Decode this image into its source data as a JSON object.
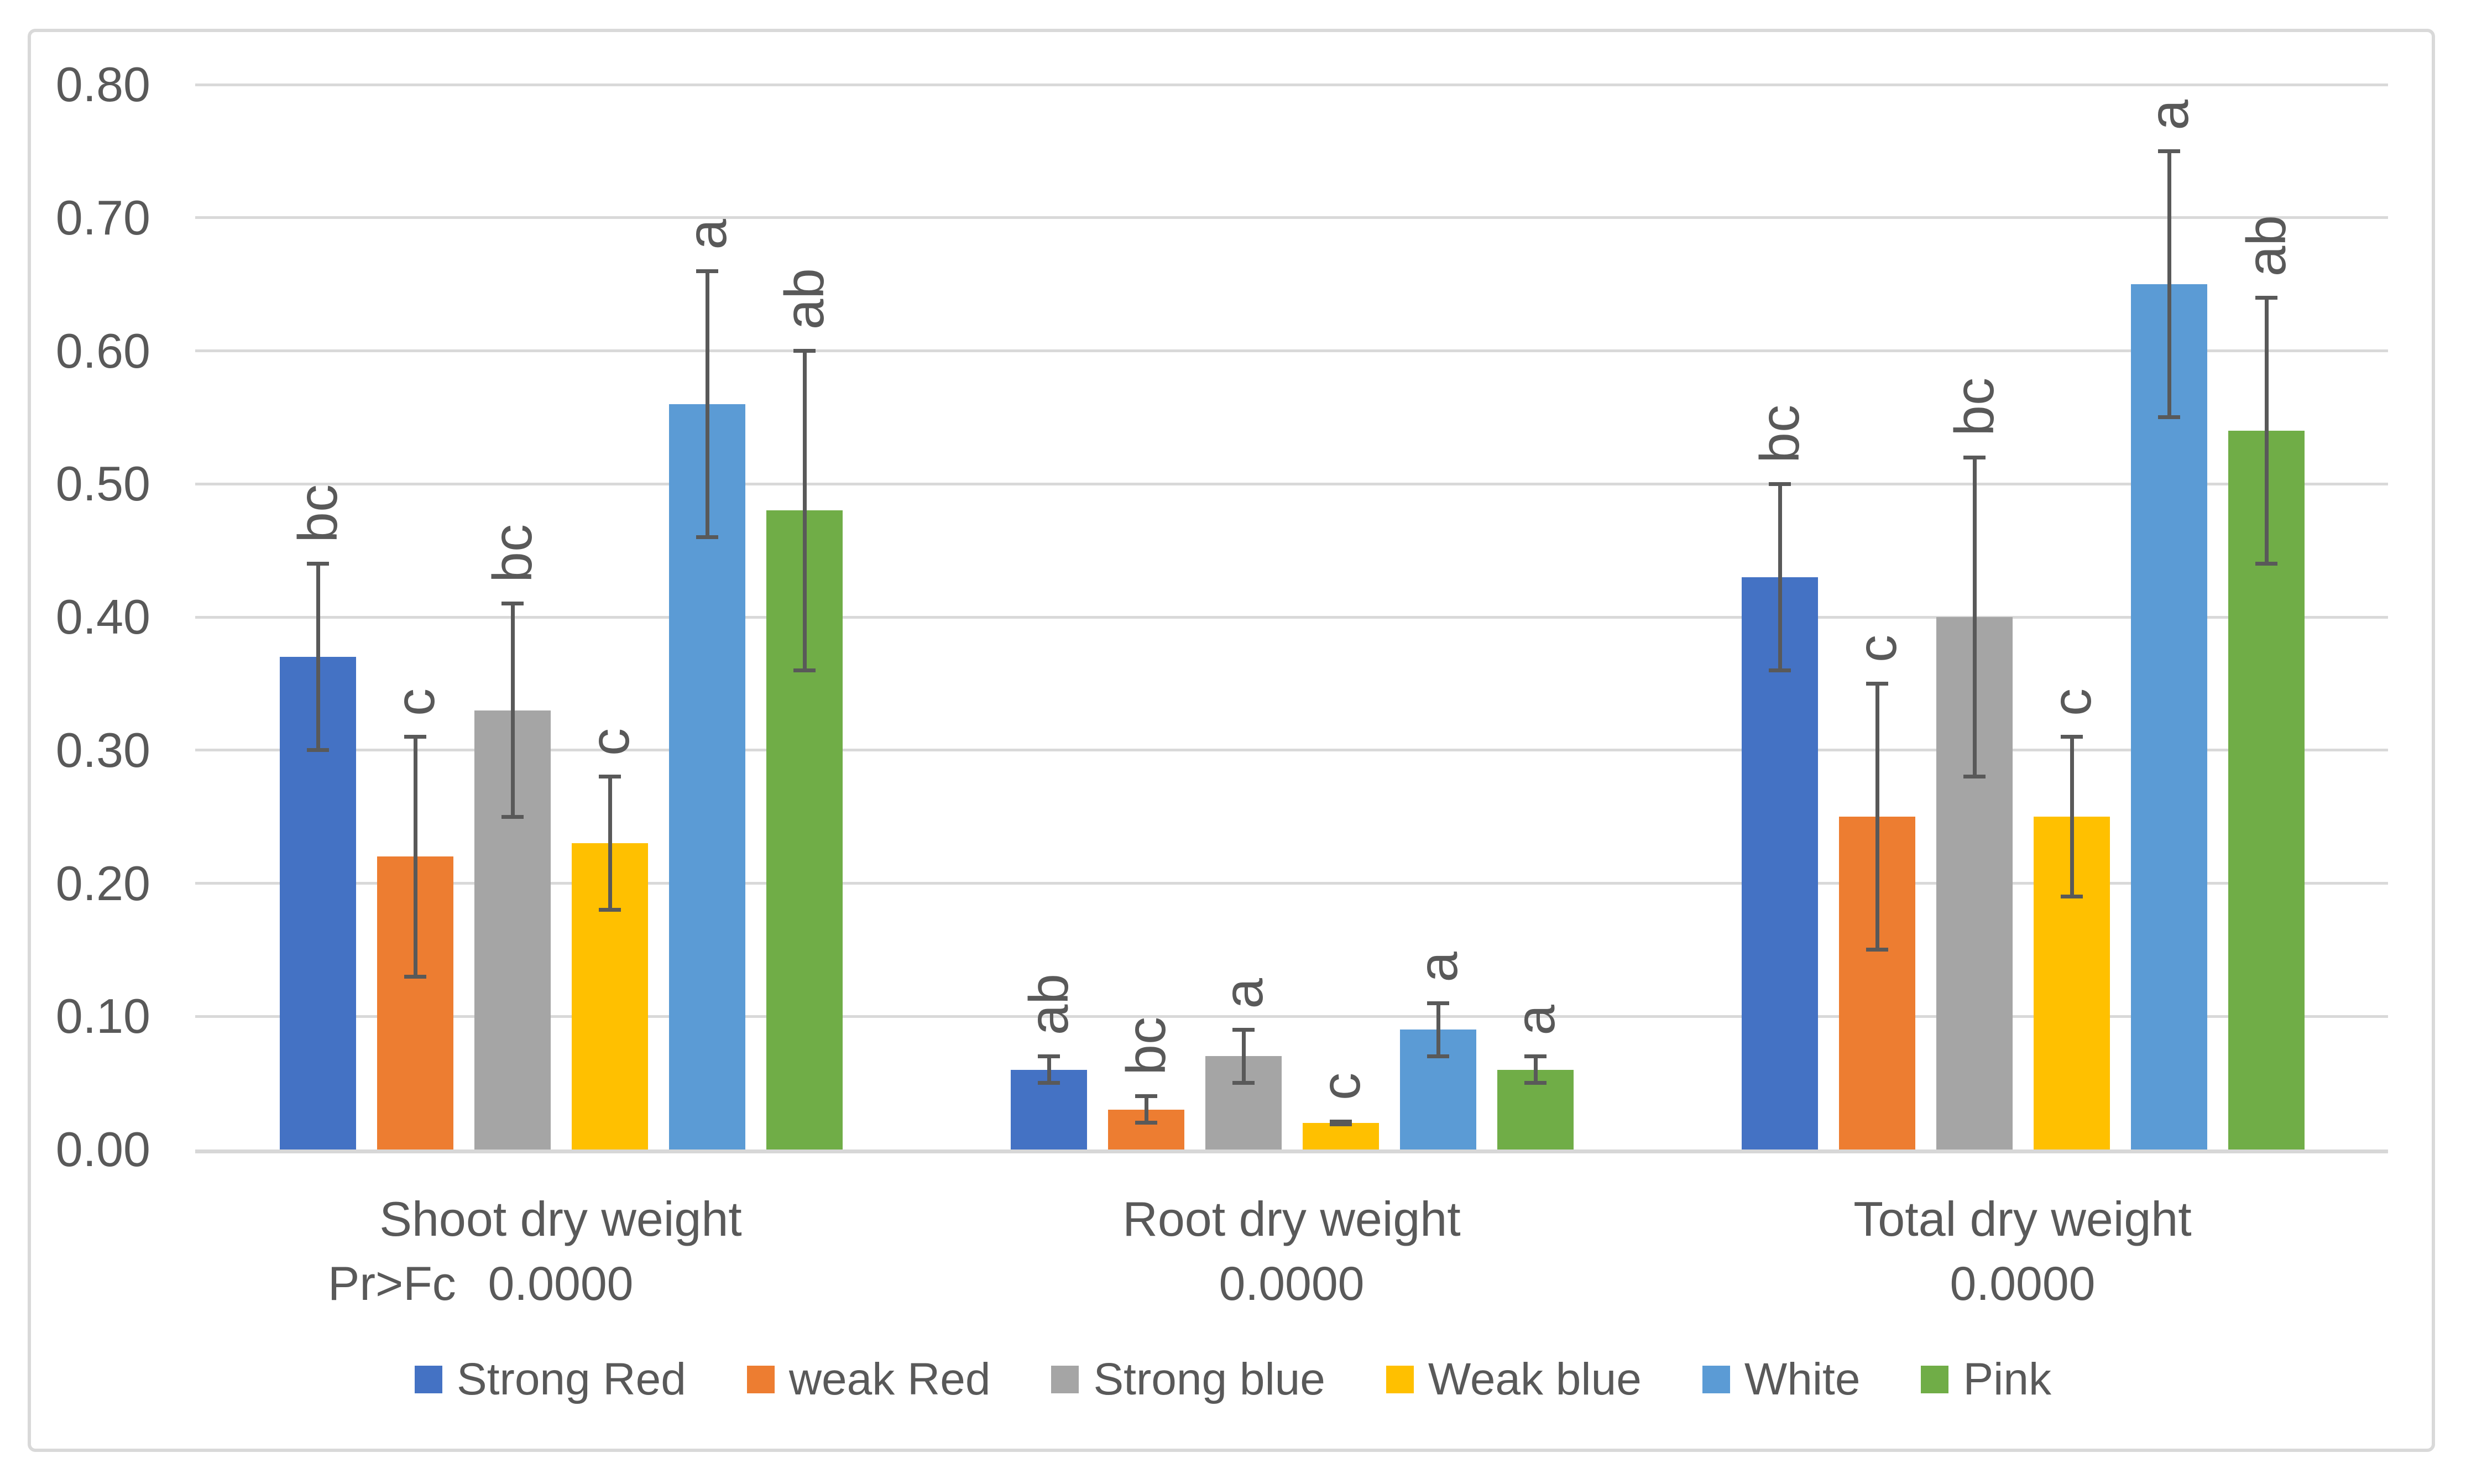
{
  "chart_data": {
    "type": "bar",
    "title": "",
    "categories": [
      "Shoot dry weight",
      "Root dry weight",
      "Total dry weight"
    ],
    "pr_row": {
      "label": "Pr>Fc",
      "values": [
        "0.0000",
        "0.0000",
        "0.0000"
      ]
    },
    "series": [
      {
        "name": "Strong Red",
        "color": "#4472C4",
        "values": [
          0.37,
          0.06,
          0.43
        ],
        "error_low": [
          0.3,
          0.05,
          0.36
        ],
        "error_high": [
          0.44,
          0.07,
          0.5
        ],
        "letters": [
          "bc",
          "ab",
          "bc"
        ]
      },
      {
        "name": "weak Red",
        "color": "#ED7D31",
        "values": [
          0.22,
          0.03,
          0.25
        ],
        "error_low": [
          0.13,
          0.02,
          0.15
        ],
        "error_high": [
          0.31,
          0.04,
          0.35
        ],
        "letters": [
          "c",
          "bc",
          "c"
        ]
      },
      {
        "name": "Strong blue",
        "color": "#A5A5A5",
        "values": [
          0.33,
          0.07,
          0.4
        ],
        "error_low": [
          0.25,
          0.05,
          0.28
        ],
        "error_high": [
          0.41,
          0.09,
          0.52
        ],
        "letters": [
          "bc",
          "a",
          "bc"
        ]
      },
      {
        "name": "Weak blue",
        "color": "#FFC000",
        "values": [
          0.23,
          0.02,
          0.25
        ],
        "error_low": [
          0.18,
          0.019,
          0.19
        ],
        "error_high": [
          0.28,
          0.021,
          0.31
        ],
        "letters": [
          "c",
          "c",
          "c"
        ]
      },
      {
        "name": "White",
        "color": "#5B9BD5",
        "values": [
          0.56,
          0.09,
          0.65
        ],
        "error_low": [
          0.46,
          0.07,
          0.55
        ],
        "error_high": [
          0.66,
          0.11,
          0.75
        ],
        "letters": [
          "a",
          "a",
          "a"
        ]
      },
      {
        "name": "Pink",
        "color": "#70AD47",
        "values": [
          0.48,
          0.06,
          0.54
        ],
        "error_low": [
          0.36,
          0.05,
          0.44
        ],
        "error_high": [
          0.6,
          0.07,
          0.64
        ],
        "letters": [
          "ab",
          "a",
          "ab"
        ]
      }
    ],
    "ylim": [
      0,
      0.8
    ],
    "ytick_step": 0.1,
    "ytick_labels": [
      "0.00",
      "0.10",
      "0.20",
      "0.30",
      "0.40",
      "0.50",
      "0.60",
      "0.70",
      "0.80"
    ],
    "grid": true,
    "legend_position": "bottom",
    "colors": {
      "text": "#595959",
      "gridline": "#D9D9D9",
      "error_bar": "#595959",
      "frame_border": "#D9D9D9"
    }
  }
}
